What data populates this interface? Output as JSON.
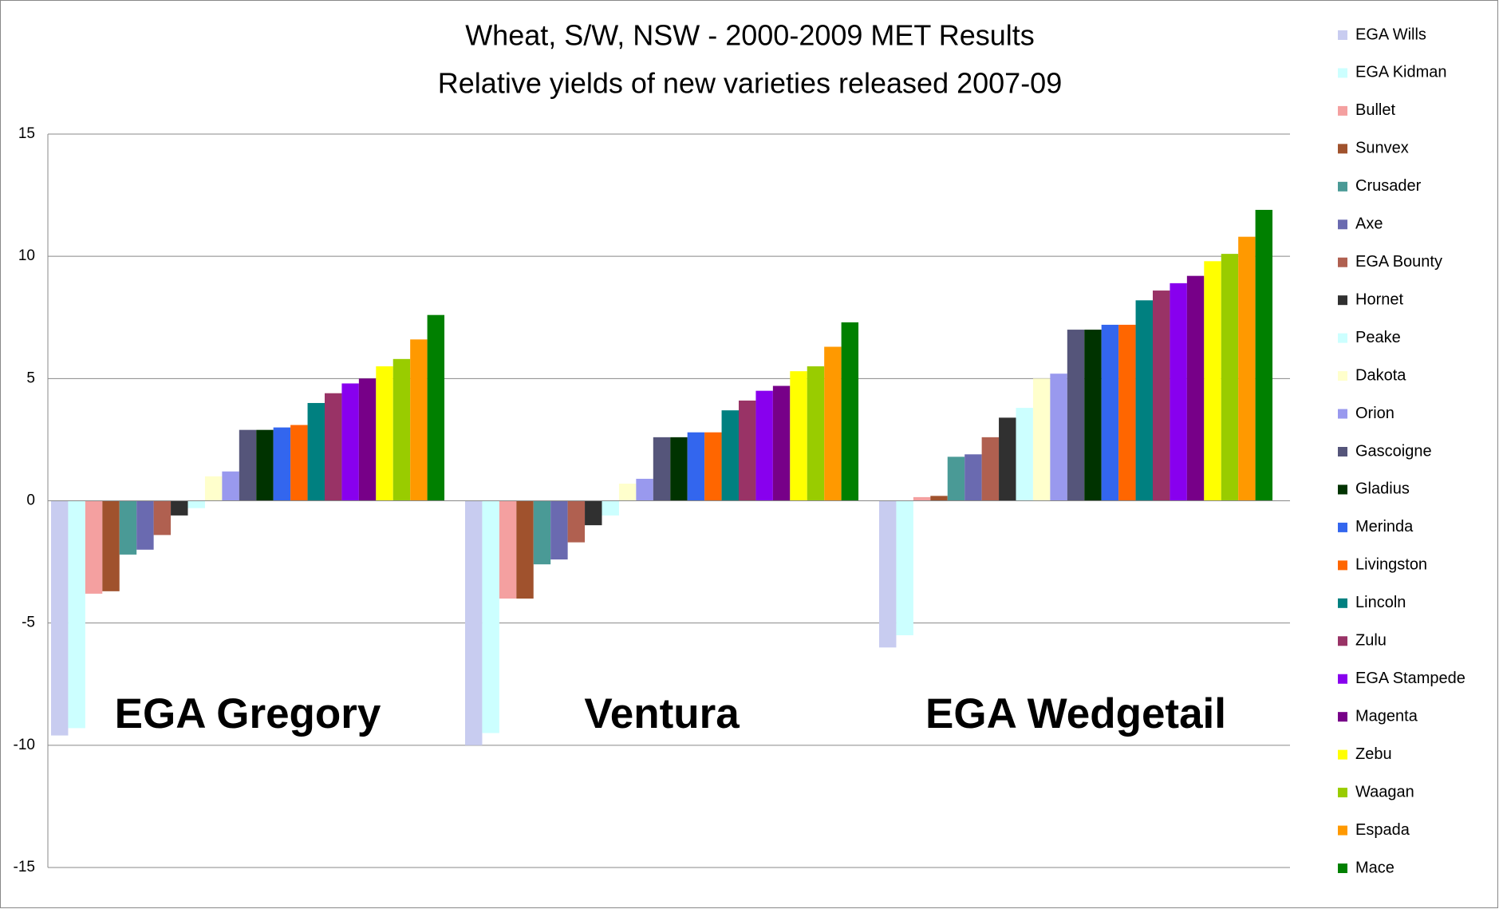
{
  "chart_data": {
    "type": "bar",
    "title": "Wheat, S/W, NSW - 2000-2009 MET Results",
    "subtitle": "Relative yields of new varieties released 2007-09",
    "categories": [
      "EGA Gregory",
      "Ventura",
      "EGA Wedgetail"
    ],
    "ylim": [
      -15,
      15
    ],
    "yticks": [
      -15,
      -10,
      -5,
      0,
      5,
      10,
      15
    ],
    "grid": true,
    "legend": "right",
    "series": [
      {
        "name": "EGA Wills",
        "color": "#c8ccf0",
        "values": [
          -9.6,
          -10.0,
          -6.0
        ]
      },
      {
        "name": "EGA Kidman",
        "color": "#ccffff",
        "values": [
          -9.3,
          -9.5,
          -5.5
        ]
      },
      {
        "name": "Bullet",
        "color": "#f4a0a0",
        "values": [
          -3.8,
          -4.0,
          0.15
        ]
      },
      {
        "name": "Sunvex",
        "color": "#a0522d",
        "values": [
          -3.7,
          -4.0,
          0.2
        ]
      },
      {
        "name": "Crusader",
        "color": "#4a9a96",
        "values": [
          -2.2,
          -2.6,
          1.8
        ]
      },
      {
        "name": "Axe",
        "color": "#6a6ab0",
        "values": [
          -2.0,
          -2.4,
          1.9
        ]
      },
      {
        "name": "EGA Bounty",
        "color": "#b06050",
        "values": [
          -1.4,
          -1.7,
          2.6
        ]
      },
      {
        "name": "Hornet",
        "color": "#303030",
        "values": [
          -0.6,
          -1.0,
          3.4
        ]
      },
      {
        "name": "Peake",
        "color": "#ccffff",
        "values": [
          -0.3,
          -0.6,
          3.8
        ]
      },
      {
        "name": "Dakota",
        "color": "#ffffcc",
        "values": [
          1.0,
          0.7,
          5.0
        ]
      },
      {
        "name": "Orion",
        "color": "#9999ee",
        "values": [
          1.2,
          0.9,
          5.2
        ]
      },
      {
        "name": "Gascoigne",
        "color": "#55557a",
        "values": [
          2.9,
          2.6,
          7.0
        ]
      },
      {
        "name": "Gladius",
        "color": "#003300",
        "values": [
          2.9,
          2.6,
          7.0
        ]
      },
      {
        "name": "Merinda",
        "color": "#3366ee",
        "values": [
          3.0,
          2.8,
          7.2
        ]
      },
      {
        "name": "Livingston",
        "color": "#ff6600",
        "values": [
          3.1,
          2.8,
          7.2
        ]
      },
      {
        "name": "Lincoln",
        "color": "#008080",
        "values": [
          4.0,
          3.7,
          8.2
        ]
      },
      {
        "name": "Zulu",
        "color": "#993366",
        "values": [
          4.4,
          4.1,
          8.6
        ]
      },
      {
        "name": "EGA Stampede",
        "color": "#8800ee",
        "values": [
          4.8,
          4.5,
          8.9
        ]
      },
      {
        "name": "Magenta",
        "color": "#770088",
        "values": [
          5.0,
          4.7,
          9.2
        ]
      },
      {
        "name": "Zebu",
        "color": "#ffff00",
        "values": [
          5.5,
          5.3,
          9.8
        ]
      },
      {
        "name": "Waagan",
        "color": "#99cc00",
        "values": [
          5.8,
          5.5,
          10.1
        ]
      },
      {
        "name": "Espada",
        "color": "#ff9900",
        "values": [
          6.6,
          6.3,
          10.8
        ]
      },
      {
        "name": "Mace",
        "color": "#008000",
        "values": [
          7.6,
          7.3,
          11.9
        ]
      }
    ]
  }
}
